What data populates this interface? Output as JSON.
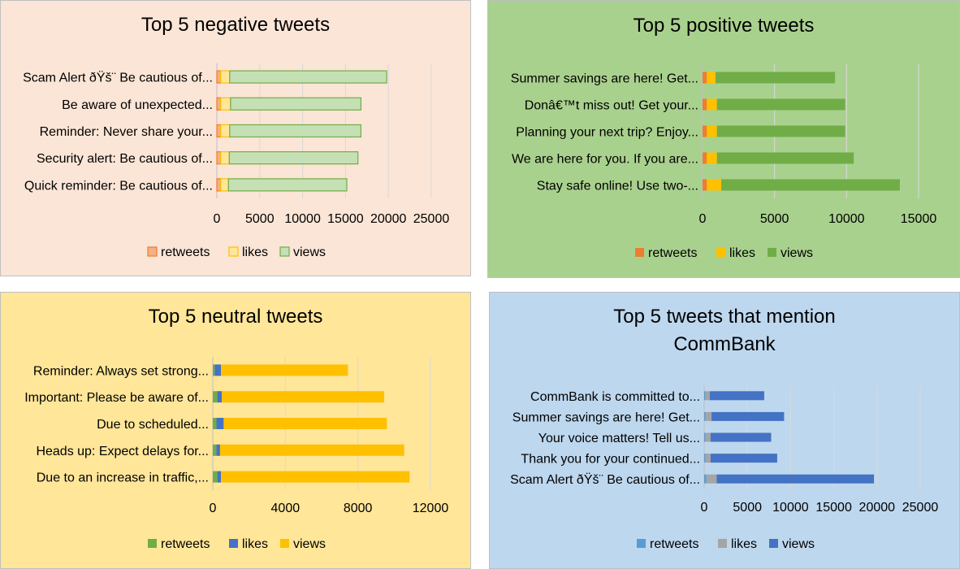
{
  "chart_data": [
    {
      "type": "bar",
      "orientation": "horizontal",
      "stacked": true,
      "title": "Top 5 negative tweets",
      "categories": [
        "Scam Alert ðŸš¨ Be cautious of...",
        "Be aware of unexpected...",
        "Reminder: Never share your...",
        "Security alert: Be cautious of...",
        "Quick reminder: Be cautious of..."
      ],
      "series": [
        {
          "name": "retweets",
          "values": [
            450,
            450,
            450,
            450,
            450
          ]
        },
        {
          "name": "likes",
          "values": [
            1050,
            1150,
            1050,
            1000,
            900
          ]
        },
        {
          "name": "views",
          "values": [
            18300,
            15200,
            15300,
            15000,
            13800
          ]
        }
      ],
      "xlim": [
        0,
        25000
      ],
      "ticks": [
        0,
        5000,
        10000,
        15000,
        20000,
        25000
      ],
      "legend_position": "bottom",
      "grid": true,
      "colors": {
        "background": "#fbe5d6",
        "retweets": "#f4b183",
        "likes": "#ffe699",
        "views": "#c5e0b4",
        "retweets_border": "#ed7d31",
        "likes_border": "#ffc000",
        "views_border": "#70ad47"
      }
    },
    {
      "type": "bar",
      "orientation": "horizontal",
      "stacked": true,
      "title": "Top 5 positive tweets",
      "categories": [
        "Summer savings are here! Get...",
        "Donâ€™t miss out! Get your...",
        "Planning your next trip? Enjoy...",
        "We are here for you. If you are...",
        "Stay safe online! Use two-..."
      ],
      "series": [
        {
          "name": "retweets",
          "values": [
            300,
            300,
            300,
            300,
            300
          ]
        },
        {
          "name": "likes",
          "values": [
            600,
            700,
            700,
            700,
            1000
          ]
        },
        {
          "name": "views",
          "values": [
            8300,
            8900,
            8900,
            9500,
            12400
          ]
        }
      ],
      "xlim": [
        0,
        15000
      ],
      "ticks": [
        0,
        5000,
        10000,
        15000
      ],
      "legend_position": "bottom",
      "grid": true,
      "colors": {
        "background": "#a9d18e",
        "retweets": "#ed7d31",
        "likes": "#ffc000",
        "views": "#70ad47"
      }
    },
    {
      "type": "bar",
      "orientation": "horizontal",
      "stacked": true,
      "title": "Top 5 neutral tweets",
      "categories": [
        "Reminder: Always set strong...",
        "Important: Please be aware of...",
        "Due to scheduled...",
        "Heads up: Expect delays for...",
        "Due to an increase in traffic,..."
      ],
      "series": [
        {
          "name": "retweets",
          "values": [
            100,
            250,
            200,
            200,
            250
          ]
        },
        {
          "name": "likes",
          "values": [
            350,
            250,
            400,
            200,
            200
          ]
        },
        {
          "name": "views",
          "values": [
            7000,
            8950,
            9000,
            10150,
            10400
          ]
        }
      ],
      "xlim": [
        0,
        12000
      ],
      "ticks": [
        0,
        4000,
        8000,
        12000
      ],
      "legend_position": "bottom",
      "grid": true,
      "colors": {
        "background": "#ffe699",
        "retweets": "#70ad47",
        "likes": "#4472c4",
        "views": "#ffc000"
      }
    },
    {
      "type": "bar",
      "orientation": "horizontal",
      "stacked": true,
      "title": "Top 5 tweets that mention CommBank",
      "categories": [
        "CommBank is committed to...",
        "Summer savings are here! Get...",
        "Your voice matters! Tell us...",
        "Thank you for your continued...",
        "Scam Alert ðŸš¨ Be cautious of..."
      ],
      "series": [
        {
          "name": "retweets",
          "values": [
            150,
            150,
            150,
            150,
            250
          ]
        },
        {
          "name": "likes",
          "values": [
            500,
            700,
            600,
            600,
            1200
          ]
        },
        {
          "name": "views",
          "values": [
            6300,
            8400,
            7000,
            7700,
            18200
          ]
        }
      ],
      "xlim": [
        0,
        25000
      ],
      "ticks": [
        0,
        5000,
        10000,
        15000,
        20000,
        25000
      ],
      "legend_position": "bottom",
      "grid": true,
      "colors": {
        "background": "#bdd7ee",
        "retweets": "#5b9bd5",
        "likes": "#a5a5a5",
        "views": "#4472c4"
      }
    }
  ]
}
